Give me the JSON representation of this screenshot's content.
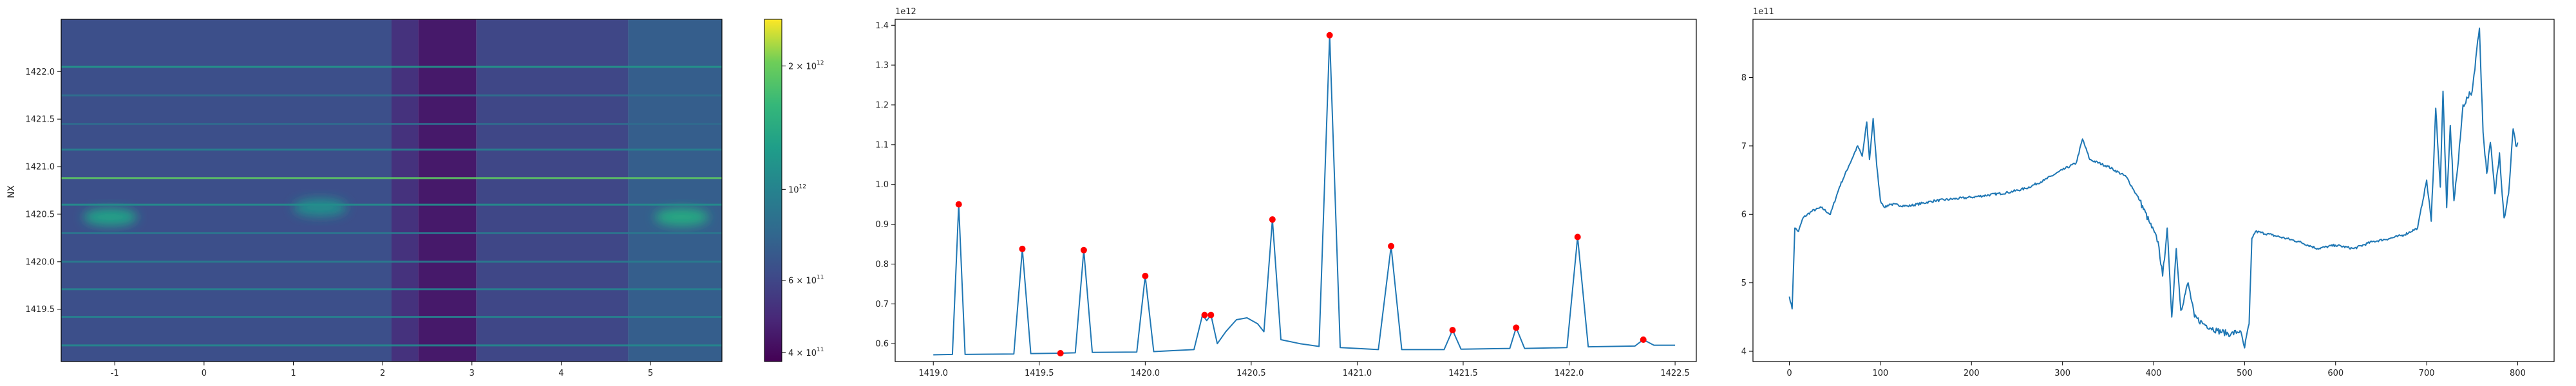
{
  "chart_data": [
    {
      "type": "heatmap",
      "ylabel": "NX",
      "xlim": [
        -1.6,
        5.8
      ],
      "ylim": [
        1418.95,
        1422.55
      ],
      "xticks": [
        "-1",
        "0",
        "1",
        "2",
        "3",
        "4",
        "5"
      ],
      "yticks": [
        "1419.5",
        "1420.0",
        "1420.5",
        "1421.0",
        "1421.5",
        "1422.0"
      ],
      "colorbar": {
        "scale": "log",
        "ticks": [
          "4 × 10",
          "6 × 10",
          "10",
          "2 × 10"
        ],
        "tick_exponent": "11",
        "tick_exponents": [
          "11",
          "11",
          "12",
          "12"
        ],
        "tick_values": [
          400000000000,
          600000000000,
          1000000000000,
          2000000000000
        ],
        "vmin": 380000000000,
        "vmax": 2600000000000
      },
      "column_bands": [
        {
          "x": [
            -1.6,
            2.1
          ],
          "value": 640000000000
        },
        {
          "x": [
            2.1,
            2.4
          ],
          "value": 520000000000
        },
        {
          "x": [
            2.4,
            3.05
          ],
          "value": 440000000000
        },
        {
          "x": [
            3.05,
            4.75
          ],
          "value": 600000000000
        },
        {
          "x": [
            4.75,
            5.8
          ],
          "value": 720000000000
        }
      ],
      "row_lines": [
        {
          "y": 1422.05,
          "value": 1200000000000,
          "x": [
            -1.6,
            5.8
          ]
        },
        {
          "y": 1421.75,
          "value": 850000000000,
          "x": [
            -1.6,
            5.8
          ]
        },
        {
          "y": 1421.45,
          "value": 800000000000,
          "x": [
            -1.6,
            5.8
          ]
        },
        {
          "y": 1421.18,
          "value": 1000000000000,
          "x": [
            -1.6,
            5.8
          ]
        },
        {
          "y": 1420.88,
          "value": 1900000000000,
          "x": [
            -1.6,
            5.8
          ]
        },
        {
          "y": 1420.6,
          "value": 1100000000000,
          "x": [
            -1.6,
            5.8
          ]
        },
        {
          "y": 1420.3,
          "value": 900000000000,
          "x": [
            -1.6,
            5.8
          ]
        },
        {
          "y": 1420.0,
          "value": 950000000000,
          "x": [
            -1.6,
            5.8
          ]
        },
        {
          "y": 1419.71,
          "value": 1000000000000,
          "x": [
            -1.6,
            5.8
          ]
        },
        {
          "y": 1419.42,
          "value": 1000000000000,
          "x": [
            -1.6,
            5.8
          ]
        },
        {
          "y": 1419.12,
          "value": 1050000000000,
          "x": [
            -1.6,
            5.8
          ]
        }
      ],
      "blobs": [
        {
          "x": -1.05,
          "y": 1420.47,
          "value": 1300000000000
        },
        {
          "x": 1.3,
          "y": 1420.57,
          "value": 1100000000000
        },
        {
          "x": 5.35,
          "y": 1420.47,
          "value": 1400000000000
        }
      ]
    },
    {
      "type": "line",
      "offset_label": "1e12",
      "xlim": [
        1418.82,
        1422.6
      ],
      "ylim": [
        0.555,
        1.415
      ],
      "xticks": [
        "1419.0",
        "1419.5",
        "1420.0",
        "1420.5",
        "1421.0",
        "1421.5",
        "1422.0",
        "1422.5"
      ],
      "yticks": [
        "0.6",
        "0.7",
        "0.8",
        "0.9",
        "1.0",
        "1.1",
        "1.2",
        "1.3",
        "1.4"
      ],
      "baseline": 0.572,
      "curve": [
        [
          1419.0,
          0.572
        ],
        [
          1419.09,
          0.573
        ],
        [
          1419.12,
          0.95
        ],
        [
          1419.15,
          0.573
        ],
        [
          1419.38,
          0.574
        ],
        [
          1419.42,
          0.838
        ],
        [
          1419.46,
          0.575
        ],
        [
          1419.6,
          0.576
        ],
        [
          1419.67,
          0.577
        ],
        [
          1419.71,
          0.835
        ],
        [
          1419.75,
          0.578
        ],
        [
          1419.96,
          0.579
        ],
        [
          1420.0,
          0.77
        ],
        [
          1420.04,
          0.58
        ],
        [
          1420.23,
          0.585
        ],
        [
          1420.27,
          0.672
        ],
        [
          1420.29,
          0.658
        ],
        [
          1420.31,
          0.672
        ],
        [
          1420.34,
          0.6
        ],
        [
          1420.38,
          0.63
        ],
        [
          1420.43,
          0.66
        ],
        [
          1420.48,
          0.665
        ],
        [
          1420.53,
          0.65
        ],
        [
          1420.56,
          0.63
        ],
        [
          1420.6,
          0.912
        ],
        [
          1420.64,
          0.61
        ],
        [
          1420.73,
          0.6
        ],
        [
          1420.82,
          0.593
        ],
        [
          1420.87,
          1.375
        ],
        [
          1420.92,
          0.59
        ],
        [
          1421.1,
          0.585
        ],
        [
          1421.16,
          0.845
        ],
        [
          1421.21,
          0.585
        ],
        [
          1421.41,
          0.585
        ],
        [
          1421.45,
          0.634
        ],
        [
          1421.49,
          0.586
        ],
        [
          1421.72,
          0.588
        ],
        [
          1421.75,
          0.64
        ],
        [
          1421.79,
          0.588
        ],
        [
          1421.99,
          0.59
        ],
        [
          1422.04,
          0.868
        ],
        [
          1422.09,
          0.592
        ],
        [
          1422.31,
          0.594
        ],
        [
          1422.35,
          0.61
        ],
        [
          1422.4,
          0.596
        ],
        [
          1422.5,
          0.596
        ]
      ],
      "peaks": [
        [
          1419.12,
          0.95
        ],
        [
          1419.42,
          0.838
        ],
        [
          1419.6,
          0.576
        ],
        [
          1419.71,
          0.835
        ],
        [
          1420.0,
          0.77
        ],
        [
          1420.28,
          0.672
        ],
        [
          1420.31,
          0.672
        ],
        [
          1420.6,
          0.912
        ],
        [
          1420.87,
          1.375
        ],
        [
          1421.16,
          0.845
        ],
        [
          1421.45,
          0.634
        ],
        [
          1421.75,
          0.64
        ],
        [
          1422.04,
          0.868
        ],
        [
          1422.35,
          0.61
        ]
      ],
      "line_color": "#1f77b4",
      "marker_color": "#ff0000"
    },
    {
      "type": "line",
      "offset_label": "1e11",
      "xlim": [
        -40,
        840
      ],
      "ylim": [
        3.85,
        8.85
      ],
      "xticks": [
        "0",
        "100",
        "200",
        "300",
        "400",
        "500",
        "600",
        "700",
        "800"
      ],
      "yticks": [
        "4",
        "5",
        "6",
        "7",
        "8"
      ],
      "line_color": "#1f77b4",
      "anchors": [
        [
          0,
          4.8
        ],
        [
          3,
          4.62
        ],
        [
          6,
          5.8
        ],
        [
          10,
          5.75
        ],
        [
          15,
          5.95
        ],
        [
          25,
          6.05
        ],
        [
          35,
          6.1
        ],
        [
          45,
          6.0
        ],
        [
          55,
          6.4
        ],
        [
          65,
          6.7
        ],
        [
          75,
          7.0
        ],
        [
          80,
          6.85
        ],
        [
          85,
          7.35
        ],
        [
          88,
          6.8
        ],
        [
          92,
          7.4
        ],
        [
          96,
          6.7
        ],
        [
          100,
          6.2
        ],
        [
          105,
          6.1
        ],
        [
          110,
          6.15
        ],
        [
          130,
          6.12
        ],
        [
          160,
          6.2
        ],
        [
          200,
          6.25
        ],
        [
          240,
          6.32
        ],
        [
          260,
          6.38
        ],
        [
          280,
          6.5
        ],
        [
          300,
          6.65
        ],
        [
          315,
          6.75
        ],
        [
          322,
          7.1
        ],
        [
          330,
          6.8
        ],
        [
          350,
          6.7
        ],
        [
          370,
          6.55
        ],
        [
          385,
          6.2
        ],
        [
          395,
          5.9
        ],
        [
          405,
          5.6
        ],
        [
          410,
          5.1
        ],
        [
          415,
          5.8
        ],
        [
          420,
          4.5
        ],
        [
          425,
          5.5
        ],
        [
          430,
          4.6
        ],
        [
          438,
          5.0
        ],
        [
          445,
          4.5
        ],
        [
          455,
          4.4
        ],
        [
          470,
          4.3
        ],
        [
          485,
          4.25
        ],
        [
          495,
          4.3
        ],
        [
          500,
          4.05
        ],
        [
          505,
          4.4
        ],
        [
          508,
          5.65
        ],
        [
          512,
          5.75
        ],
        [
          530,
          5.7
        ],
        [
          560,
          5.6
        ],
        [
          580,
          5.5
        ],
        [
          600,
          5.55
        ],
        [
          620,
          5.5
        ],
        [
          640,
          5.6
        ],
        [
          660,
          5.65
        ],
        [
          675,
          5.7
        ],
        [
          690,
          5.8
        ],
        [
          700,
          6.5
        ],
        [
          705,
          5.9
        ],
        [
          710,
          7.55
        ],
        [
          715,
          6.4
        ],
        [
          718,
          7.8
        ],
        [
          722,
          6.1
        ],
        [
          726,
          7.3
        ],
        [
          730,
          6.2
        ],
        [
          735,
          6.8
        ],
        [
          740,
          7.6
        ],
        [
          745,
          7.7
        ],
        [
          750,
          7.8
        ],
        [
          755,
          8.4
        ],
        [
          758,
          8.72
        ],
        [
          762,
          7.2
        ],
        [
          766,
          6.6
        ],
        [
          770,
          7.05
        ],
        [
          775,
          6.3
        ],
        [
          780,
          6.9
        ],
        [
          785,
          5.95
        ],
        [
          790,
          6.3
        ],
        [
          795,
          7.25
        ],
        [
          798,
          7.0
        ],
        [
          800,
          7.05
        ]
      ]
    }
  ]
}
